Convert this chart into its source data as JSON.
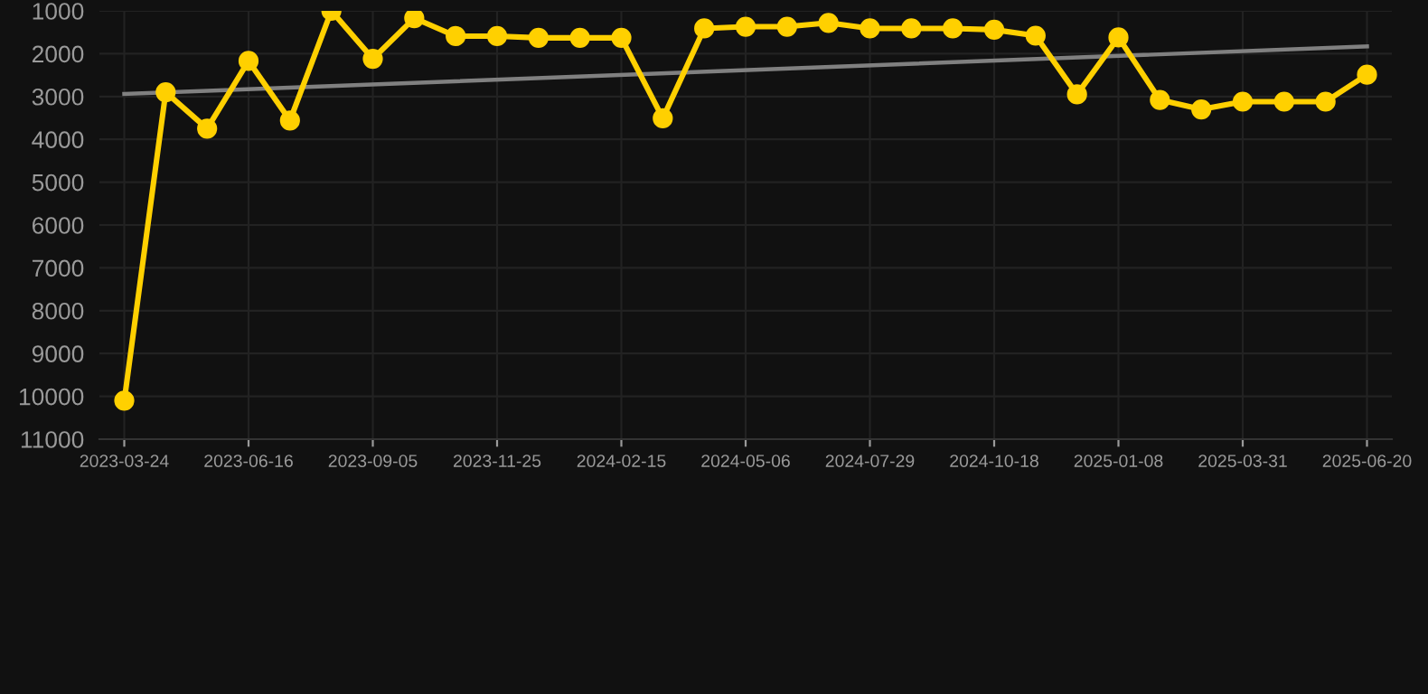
{
  "chart_data": {
    "type": "line",
    "categories": [
      "2023-03-24",
      null,
      null,
      "2023-06-16",
      null,
      null,
      "2023-09-05",
      null,
      null,
      "2023-11-25",
      null,
      null,
      "2024-02-15",
      null,
      null,
      "2024-05-06",
      null,
      null,
      "2024-07-29",
      null,
      null,
      "2024-10-18",
      null,
      null,
      "2025-01-08",
      null,
      null,
      "2025-03-31",
      null,
      null,
      "2025-06-20"
    ],
    "series": [
      {
        "color": "#ffd000",
        "marker": "circle",
        "values": [
          10100,
          2900,
          3750,
          2170,
          3560,
          1000,
          2120,
          1170,
          1590,
          1590,
          1630,
          1630,
          1630,
          3510,
          1410,
          1370,
          1370,
          1280,
          1410,
          1410,
          1410,
          1440,
          1580,
          2950,
          1620,
          3080,
          3300,
          3120,
          3120,
          3120,
          2490
        ]
      },
      {
        "color": "#808080",
        "marker": "none",
        "values": [
          2940,
          null,
          null,
          null,
          null,
          null,
          null,
          null,
          null,
          null,
          null,
          null,
          null,
          null,
          null,
          null,
          null,
          null,
          null,
          null,
          null,
          null,
          null,
          null,
          null,
          null,
          null,
          null,
          null,
          null,
          1830
        ]
      }
    ],
    "ylim": [
      11000,
      1000
    ],
    "yticks": [
      1000,
      2000,
      3000,
      4000,
      5000,
      6000,
      7000,
      8000,
      9000,
      10000,
      11000
    ],
    "grid": true,
    "legend": false
  }
}
